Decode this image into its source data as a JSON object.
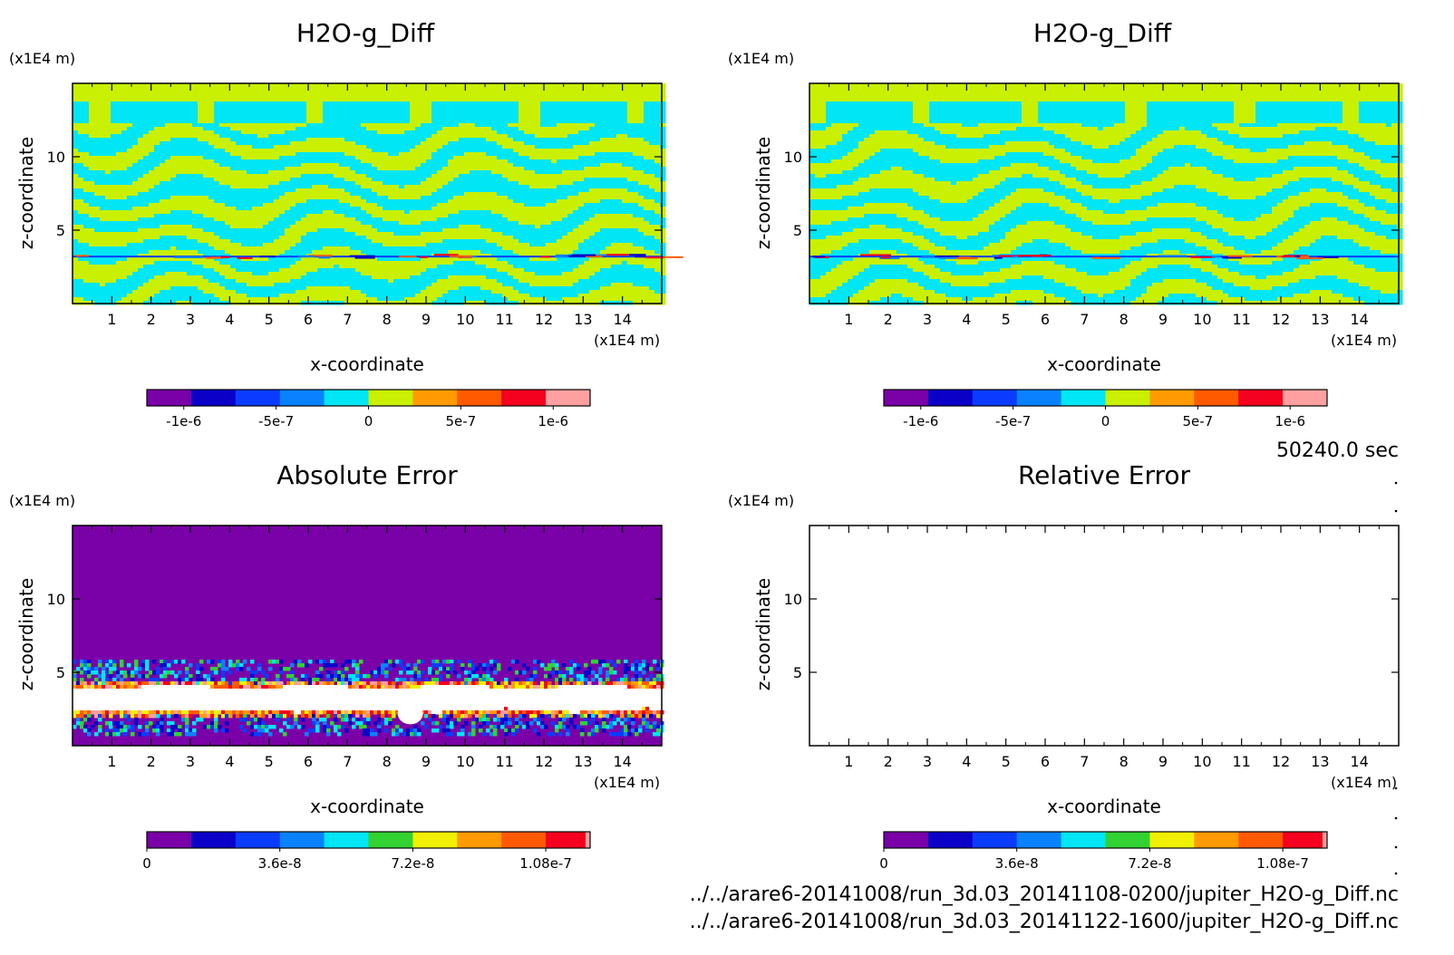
{
  "figure": {
    "time_label": "50240.0 sec",
    "files": [
      "../../arare6-20141008/run_3d.03_20141108-0200/jupiter_H2O-g_Diff.nc",
      "../../arare6-20141008/run_3d.03_20141122-1600/jupiter_H2O-g_Diff.nc"
    ]
  },
  "panels": [
    {
      "title": "H2O-g_Diff",
      "y_unit": "(x1E4 m)",
      "x_unit": "(x1E4 m)"
    },
    {
      "title": "H2O-g_Diff",
      "y_unit": "(x1E4 m)",
      "x_unit": "(x1E4 m)"
    },
    {
      "title": "Absolute Error",
      "y_unit": "(x1E4 m)",
      "x_unit": "(x1E4 m)"
    },
    {
      "title": "Relative Error",
      "y_unit": "(x1E4 m)",
      "x_unit": "(x1E4 m)"
    }
  ],
  "colorbars": [
    {
      "colors": [
        "#7a00a8",
        "#0a00c8",
        "#0a3cff",
        "#0a82ff",
        "#00e6f5",
        "#c8f000",
        "#ff9b00",
        "#ff5a00",
        "#f5001e",
        "#ffa0a0"
      ],
      "tick_labels": [
        "-1e-6",
        "-5e-7",
        "0",
        "5e-7",
        "1e-6"
      ],
      "tick_values": [
        -1e-06,
        -5e-07,
        0,
        5e-07,
        1e-06
      ],
      "range": [
        -1.2e-06,
        1.2e-06
      ]
    },
    {
      "colors": [
        "#7a00a8",
        "#0a00c8",
        "#0a3cff",
        "#0a82ff",
        "#00e6f5",
        "#c8f000",
        "#ff9b00",
        "#ff5a00",
        "#f5001e",
        "#ffa0a0"
      ],
      "tick_labels": [
        "-1e-6",
        "-5e-7",
        "0",
        "5e-7",
        "1e-6"
      ],
      "tick_values": [
        -1e-06,
        -5e-07,
        0,
        5e-07,
        1e-06
      ],
      "range": [
        -1.2e-06,
        1.2e-06
      ]
    },
    {
      "colors": [
        "#7a00a8",
        "#0a00c8",
        "#0a3cff",
        "#0a82ff",
        "#00e6f5",
        "#32d232",
        "#f0f000",
        "#ff9b00",
        "#ff5a00",
        "#f5001e",
        "#ffa0a0"
      ],
      "tick_labels": [
        "0",
        "3.6e-8",
        "7.2e-8",
        "1.08e-7"
      ],
      "tick_values": [
        0,
        3.6e-08,
        7.2e-08,
        1.08e-07
      ],
      "range": [
        0,
        1.2e-07
      ]
    },
    {
      "colors": [
        "#7a00a8",
        "#0a00c8",
        "#0a3cff",
        "#0a82ff",
        "#00e6f5",
        "#32d232",
        "#f0f000",
        "#ff9b00",
        "#ff5a00",
        "#f5001e",
        "#ffa0a0"
      ],
      "tick_labels": [
        "0",
        "3.6e-8",
        "7.2e-8",
        "1.08e-7"
      ],
      "tick_values": [
        0,
        3.6e-08,
        7.2e-08,
        1.08e-07
      ],
      "range": [
        0,
        1.2e-07
      ]
    }
  ],
  "chart_data": [
    {
      "type": "heatmap",
      "title": "H2O-g_Diff",
      "xlabel": "x-coordinate",
      "ylabel": "z-coordinate",
      "x_unit": "(x1E4 m)",
      "y_unit": "(x1E4 m)",
      "xlim": [
        0,
        15
      ],
      "ylim": [
        0,
        15
      ],
      "xticks": [
        1,
        2,
        3,
        4,
        5,
        6,
        7,
        8,
        9,
        10,
        11,
        12,
        13,
        14
      ],
      "yticks": [
        5,
        10
      ],
      "dominant_levels": [
        "0 to 2.5e-7",
        "-2.5e-7 to 0"
      ],
      "colorbar_ticks": [
        "-1e-6",
        "-5e-7",
        "0",
        "5e-7",
        "1e-6"
      ],
      "extremes_near_z": 3.2,
      "style": "fine banded stripes"
    },
    {
      "type": "heatmap",
      "title": "H2O-g_Diff",
      "xlabel": "x-coordinate",
      "ylabel": "z-coordinate",
      "x_unit": "(x1E4 m)",
      "y_unit": "(x1E4 m)",
      "xlim": [
        0,
        15
      ],
      "ylim": [
        0,
        15
      ],
      "xticks": [
        1,
        2,
        3,
        4,
        5,
        6,
        7,
        8,
        9,
        10,
        11,
        12,
        13,
        14
      ],
      "yticks": [
        5,
        10
      ],
      "dominant_levels": [
        "0 to 2.5e-7",
        "-2.5e-7 to 0"
      ],
      "colorbar_ticks": [
        "-1e-6",
        "-5e-7",
        "0",
        "5e-7",
        "1e-6"
      ],
      "extremes_near_z": 3.2,
      "style": "fine banded stripes"
    },
    {
      "type": "heatmap",
      "title": "Absolute Error",
      "xlabel": "x-coordinate",
      "ylabel": "z-coordinate",
      "x_unit": "(x1E4 m)",
      "y_unit": "(x1E4 m)",
      "xlim": [
        0,
        15
      ],
      "ylim": [
        0,
        15
      ],
      "xticks": [
        1,
        2,
        3,
        4,
        5,
        6,
        7,
        8,
        9,
        10,
        11,
        12,
        13,
        14
      ],
      "yticks": [
        5,
        10
      ],
      "background_value": 0,
      "high_error_band_z": [
        2.3,
        4.2
      ],
      "disturbed_band_z": [
        1.0,
        5.5
      ],
      "colorbar_ticks": [
        "0",
        "3.6e-8",
        "7.2e-8",
        "1.08e-7"
      ]
    },
    {
      "type": "heatmap",
      "title": "Relative Error",
      "xlabel": "x-coordinate",
      "ylabel": "z-coordinate",
      "x_unit": "(x1E4 m)",
      "y_unit": "(x1E4 m)",
      "xlim": [
        0,
        15
      ],
      "ylim": [
        0,
        15
      ],
      "xticks": [
        1,
        2,
        3,
        4,
        5,
        6,
        7,
        8,
        9,
        10,
        11,
        12,
        13,
        14
      ],
      "yticks": [
        5,
        10
      ],
      "field": "blank",
      "colorbar_ticks": [
        "0",
        "3.6e-8",
        "7.2e-8",
        "1.08e-7"
      ]
    }
  ]
}
